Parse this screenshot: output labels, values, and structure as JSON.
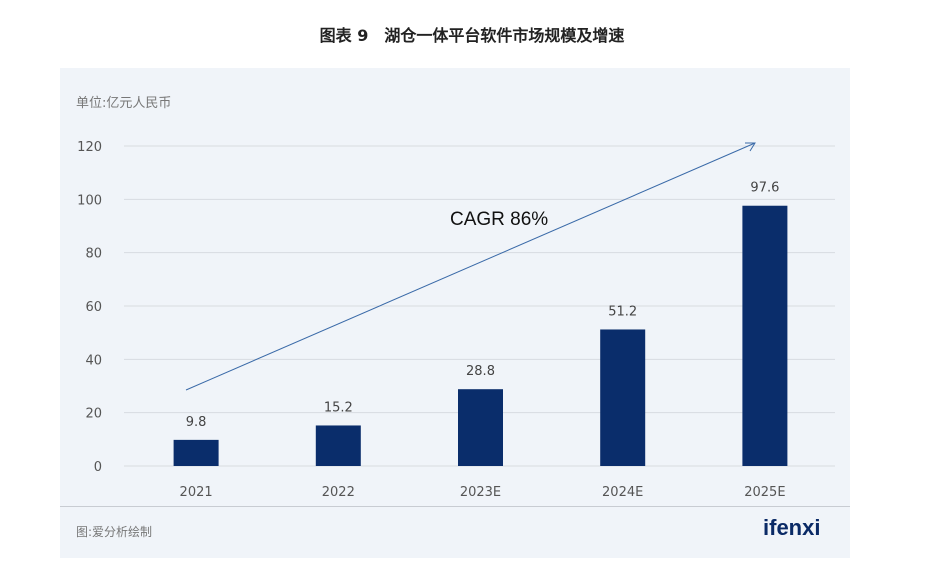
{
  "title": "图表 9　湖仓一体平台软件市场规模及增速",
  "unit": "单位:亿元人民币",
  "source": "图:爱分析绘制",
  "logo": "ifenxi",
  "colors": {
    "bar": "#0a2d6b",
    "arrow": "#3a6aa8",
    "grid": "#d7dbe0"
  },
  "chart_data": {
    "type": "bar",
    "title": "湖仓一体平台软件市场规模及增速",
    "ylabel": "单位:亿元人民币",
    "categories": [
      "2021",
      "2022",
      "2023E",
      "2024E",
      "2025E"
    ],
    "values": [
      9.8,
      15.2,
      28.8,
      51.2,
      97.6
    ],
    "labels": [
      "9.8",
      "15.2",
      "28.8",
      "51.2",
      "97.6"
    ],
    "yticks": [
      0,
      20,
      40,
      60,
      80,
      100,
      120
    ],
    "ylim": [
      0,
      120
    ],
    "grid": true,
    "annotation": "CAGR 86%"
  }
}
